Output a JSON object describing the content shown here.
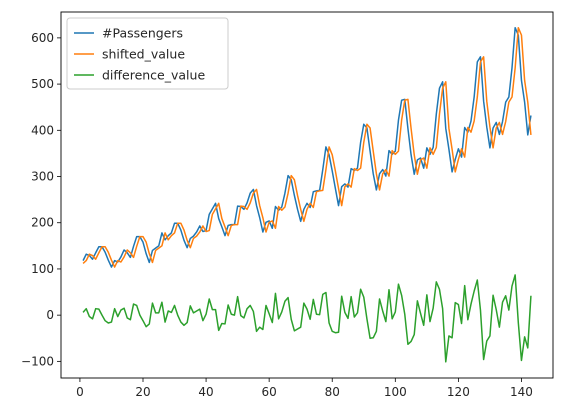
{
  "chart_data": {
    "type": "line",
    "title": "",
    "xlabel": "",
    "ylabel": "",
    "xlim": [
      -6,
      150
    ],
    "ylim": [
      -136,
      656
    ],
    "xticks": [
      0,
      20,
      40,
      60,
      80,
      100,
      120,
      140
    ],
    "yticks": [
      -100,
      0,
      100,
      200,
      300,
      400,
      500,
      600
    ],
    "grid": false,
    "legend_position": "top-left",
    "x": [
      1,
      2,
      3,
      4,
      5,
      6,
      7,
      8,
      9,
      10,
      11,
      12,
      13,
      14,
      15,
      16,
      17,
      18,
      19,
      20,
      21,
      22,
      23,
      24,
      25,
      26,
      27,
      28,
      29,
      30,
      31,
      32,
      33,
      34,
      35,
      36,
      37,
      38,
      39,
      40,
      41,
      42,
      43,
      44,
      45,
      46,
      47,
      48,
      49,
      50,
      51,
      52,
      53,
      54,
      55,
      56,
      57,
      58,
      59,
      60,
      61,
      62,
      63,
      64,
      65,
      66,
      67,
      68,
      69,
      70,
      71,
      72,
      73,
      74,
      75,
      76,
      77,
      78,
      79,
      80,
      81,
      82,
      83,
      84,
      85,
      86,
      87,
      88,
      89,
      90,
      91,
      92,
      93,
      94,
      95,
      96,
      97,
      98,
      99,
      100,
      101,
      102,
      103,
      104,
      105,
      106,
      107,
      108,
      109,
      110,
      111,
      112,
      113,
      114,
      115,
      116,
      117,
      118,
      119,
      120,
      121,
      122,
      123,
      124,
      125,
      126,
      127,
      128,
      129,
      130,
      131,
      132,
      133,
      134,
      135,
      136,
      137,
      138,
      139,
      140,
      141,
      142,
      143
    ],
    "series": [
      {
        "name": "#Passengers",
        "color": "#1f77b4",
        "values": [
          118,
          132,
          129,
          121,
          135,
          148,
          148,
          136,
          119,
          104,
          118,
          115,
          126,
          141,
          135,
          125,
          149,
          170,
          170,
          158,
          133,
          114,
          140,
          145,
          150,
          178,
          163,
          172,
          178,
          199,
          199,
          184,
          162,
          146,
          166,
          171,
          180,
          193,
          181,
          183,
          218,
          230,
          242,
          209,
          191,
          172,
          194,
          196,
          196,
          236,
          235,
          229,
          243,
          264,
          272,
          237,
          211,
          180,
          201,
          204,
          188,
          235,
          227,
          234,
          264,
          302,
          293,
          259,
          229,
          203,
          229,
          242,
          233,
          267,
          269,
          270,
          315,
          364,
          347,
          312,
          274,
          237,
          278,
          284,
          277,
          317,
          313,
          318,
          374,
          413,
          405,
          355,
          306,
          271,
          306,
          315,
          301,
          356,
          348,
          355,
          422,
          465,
          467,
          404,
          347,
          305,
          336,
          340,
          318,
          362,
          348,
          363,
          435,
          491,
          505,
          404,
          359,
          310,
          337,
          360,
          342,
          406,
          396,
          420,
          472,
          548,
          559,
          463,
          407,
          362,
          405,
          417,
          391,
          419,
          461,
          472,
          535,
          622,
          606,
          508,
          461,
          390,
          432
        ]
      },
      {
        "name": "shifted_value",
        "color": "#ff7f0e",
        "values": [
          112,
          118,
          132,
          129,
          121,
          135,
          148,
          148,
          136,
          119,
          104,
          118,
          115,
          126,
          141,
          135,
          125,
          149,
          170,
          170,
          158,
          133,
          114,
          140,
          145,
          150,
          178,
          163,
          172,
          178,
          199,
          199,
          184,
          162,
          146,
          166,
          171,
          180,
          193,
          181,
          183,
          218,
          230,
          242,
          209,
          191,
          172,
          194,
          196,
          196,
          236,
          235,
          229,
          243,
          264,
          272,
          237,
          211,
          180,
          201,
          204,
          188,
          235,
          227,
          234,
          264,
          302,
          293,
          259,
          229,
          203,
          229,
          242,
          233,
          267,
          269,
          270,
          315,
          364,
          347,
          312,
          274,
          237,
          278,
          284,
          277,
          317,
          313,
          318,
          374,
          413,
          405,
          355,
          306,
          271,
          306,
          315,
          301,
          356,
          348,
          355,
          422,
          465,
          467,
          404,
          347,
          305,
          336,
          340,
          318,
          362,
          348,
          363,
          435,
          491,
          505,
          404,
          359,
          310,
          337,
          360,
          342,
          406,
          396,
          420,
          472,
          548,
          559,
          463,
          407,
          362,
          405,
          417,
          391,
          419,
          461,
          472,
          535,
          622,
          606,
          508,
          461,
          390
        ]
      },
      {
        "name": "difference_value",
        "color": "#2ca02c",
        "values": [
          6,
          14,
          -3,
          -8,
          14,
          13,
          0,
          -12,
          -17,
          -15,
          14,
          -3,
          11,
          15,
          -6,
          -10,
          24,
          21,
          0,
          -12,
          -25,
          -19,
          26,
          5,
          5,
          28,
          -15,
          9,
          6,
          21,
          0,
          -15,
          -22,
          -16,
          20,
          5,
          9,
          13,
          -12,
          2,
          35,
          12,
          12,
          -33,
          -18,
          -19,
          22,
          2,
          0,
          40,
          -1,
          -6,
          14,
          21,
          8,
          -35,
          -26,
          -31,
          21,
          3,
          -16,
          47,
          -8,
          7,
          30,
          38,
          -9,
          -34,
          -30,
          -26,
          26,
          13,
          -9,
          34,
          2,
          1,
          45,
          49,
          -17,
          -35,
          -38,
          -37,
          41,
          6,
          -7,
          40,
          -4,
          5,
          56,
          39,
          -8,
          -50,
          -49,
          -35,
          35,
          9,
          -14,
          55,
          -8,
          7,
          67,
          43,
          2,
          -63,
          -57,
          -42,
          31,
          4,
          -22,
          44,
          -14,
          15,
          72,
          56,
          14,
          -101,
          -45,
          -49,
          27,
          23,
          -18,
          64,
          -10,
          24,
          52,
          76,
          11,
          -96,
          -56,
          -45,
          43,
          12,
          -26,
          28,
          42,
          11,
          63,
          87,
          -16,
          -98,
          -47,
          -71,
          42
        ]
      }
    ]
  }
}
